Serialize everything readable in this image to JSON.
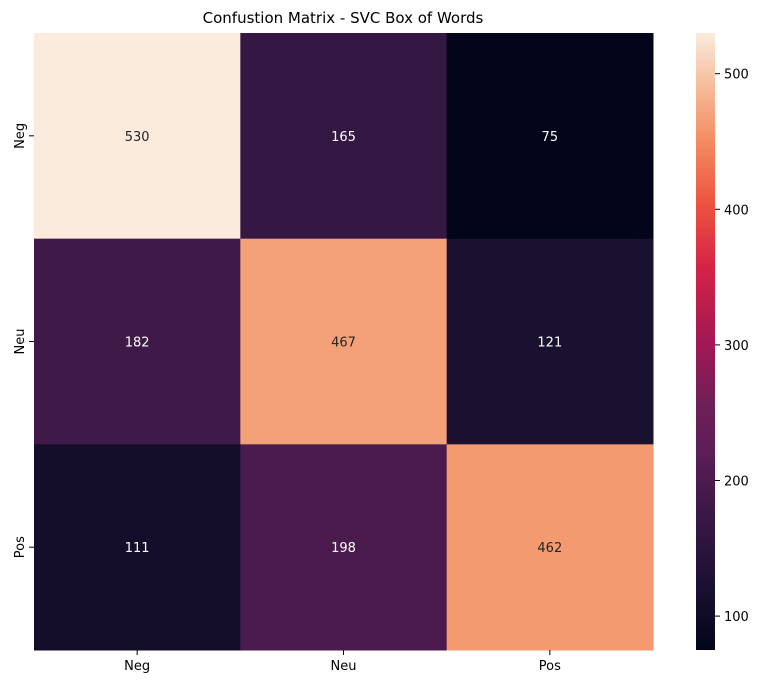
{
  "chart_data": {
    "type": "heatmap",
    "title": "Confustion Matrix - SVC Box of Words",
    "xlabel": "",
    "ylabel": "",
    "x_categories": [
      "Neg",
      "Neu",
      "Pos"
    ],
    "y_categories": [
      "Neg",
      "Neu",
      "Pos"
    ],
    "values": [
      [
        530,
        165,
        75
      ],
      [
        182,
        467,
        121
      ],
      [
        111,
        198,
        462
      ]
    ],
    "colormap": "rocket",
    "vmin": 75,
    "vmax": 530,
    "colorbar_ticks": [
      100,
      200,
      300,
      400,
      500
    ],
    "colorbar_tick_labels": [
      "100",
      "200",
      "300",
      "400",
      "500"
    ]
  }
}
